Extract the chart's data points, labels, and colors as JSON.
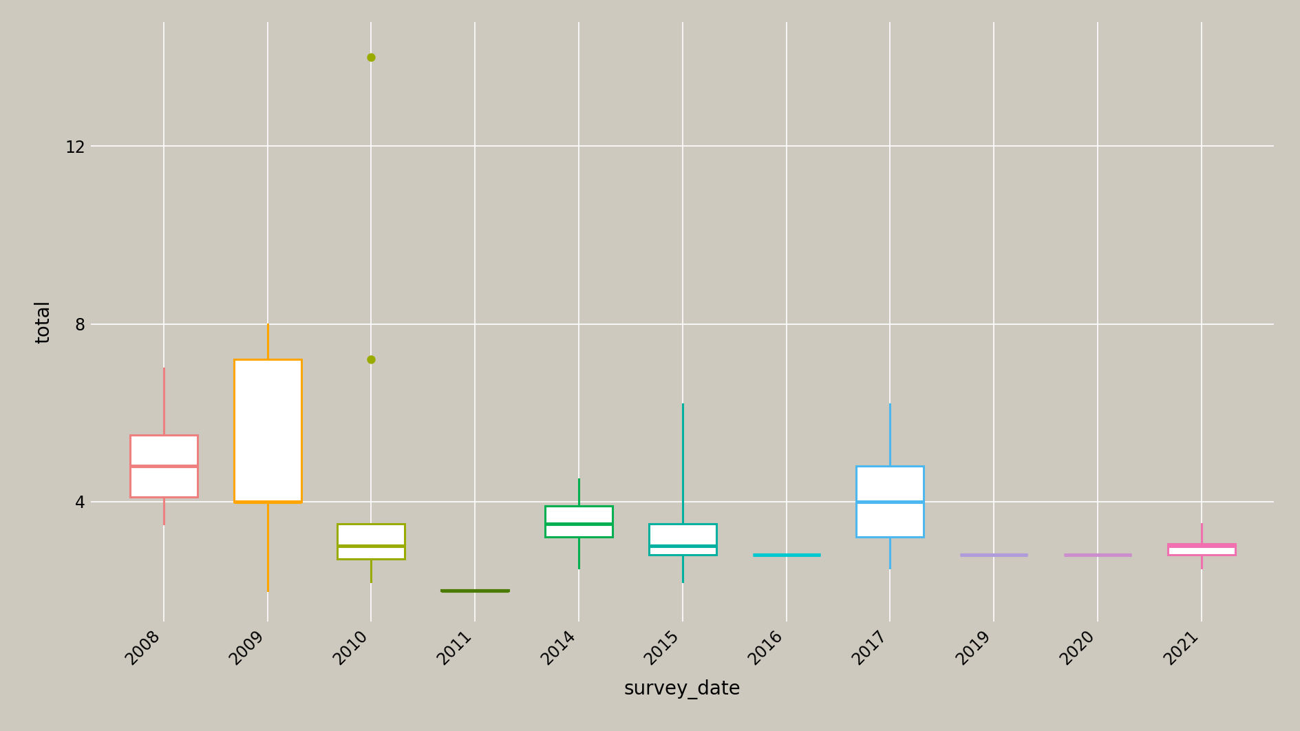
{
  "background_color": "#cdc9be",
  "grid_color": "#ffffff",
  "ylabel": "total",
  "xlabel": "survey_date",
  "ylim": [
    1.3,
    14.8
  ],
  "yticks": [
    4,
    8,
    12
  ],
  "box_data": {
    "2008": {
      "color": "#f08080",
      "whisker_low": 3.5,
      "q1": 4.1,
      "median": 4.8,
      "q3": 5.5,
      "whisker_high": 7.0,
      "outliers": []
    },
    "2009": {
      "color": "#FFA500",
      "whisker_low": 2.0,
      "q1": 4.0,
      "median": 4.0,
      "q3": 7.2,
      "whisker_high": 8.0,
      "outliers": []
    },
    "2010": {
      "color": "#9aab00",
      "whisker_low": 2.2,
      "q1": 2.7,
      "median": 3.0,
      "q3": 3.5,
      "whisker_high": 3.5,
      "outliers": [
        7.2,
        14.0
      ]
    },
    "2011": {
      "color": "#4a7a00",
      "whisker_low": 2.0,
      "q1": 2.0,
      "median": 2.0,
      "q3": 2.0,
      "whisker_high": 2.0,
      "outliers": []
    },
    "2014": {
      "color": "#00b050",
      "whisker_low": 2.5,
      "q1": 3.2,
      "median": 3.5,
      "q3": 3.9,
      "whisker_high": 4.5,
      "outliers": []
    },
    "2015": {
      "color": "#00b0a0",
      "whisker_low": 2.2,
      "q1": 2.8,
      "median": 3.0,
      "q3": 3.5,
      "whisker_high": 6.2,
      "outliers": []
    },
    "2016": {
      "color": "#00c8d0",
      "whisker_low": 2.8,
      "q1": 2.8,
      "median": 2.8,
      "q3": 2.8,
      "whisker_high": 2.8,
      "outliers": []
    },
    "2017": {
      "color": "#4db8f0",
      "whisker_low": 2.5,
      "q1": 3.2,
      "median": 4.0,
      "q3": 4.8,
      "whisker_high": 6.2,
      "outliers": []
    },
    "2019": {
      "color": "#b09cdb",
      "whisker_low": 2.8,
      "q1": 2.8,
      "median": 2.8,
      "q3": 2.8,
      "whisker_high": 2.8,
      "outliers": []
    },
    "2020": {
      "color": "#cc8ecc",
      "whisker_low": 2.8,
      "q1": 2.8,
      "median": 2.8,
      "q3": 2.8,
      "whisker_high": 2.8,
      "outliers": []
    },
    "2021": {
      "color": "#f070b0",
      "whisker_low": 2.5,
      "q1": 2.8,
      "median": 3.0,
      "q3": 3.05,
      "whisker_high": 3.5,
      "outliers": []
    }
  },
  "box_width": 0.65,
  "lw": 2.2,
  "fontsize_axis_label": 20,
  "fontsize_tick": 17
}
